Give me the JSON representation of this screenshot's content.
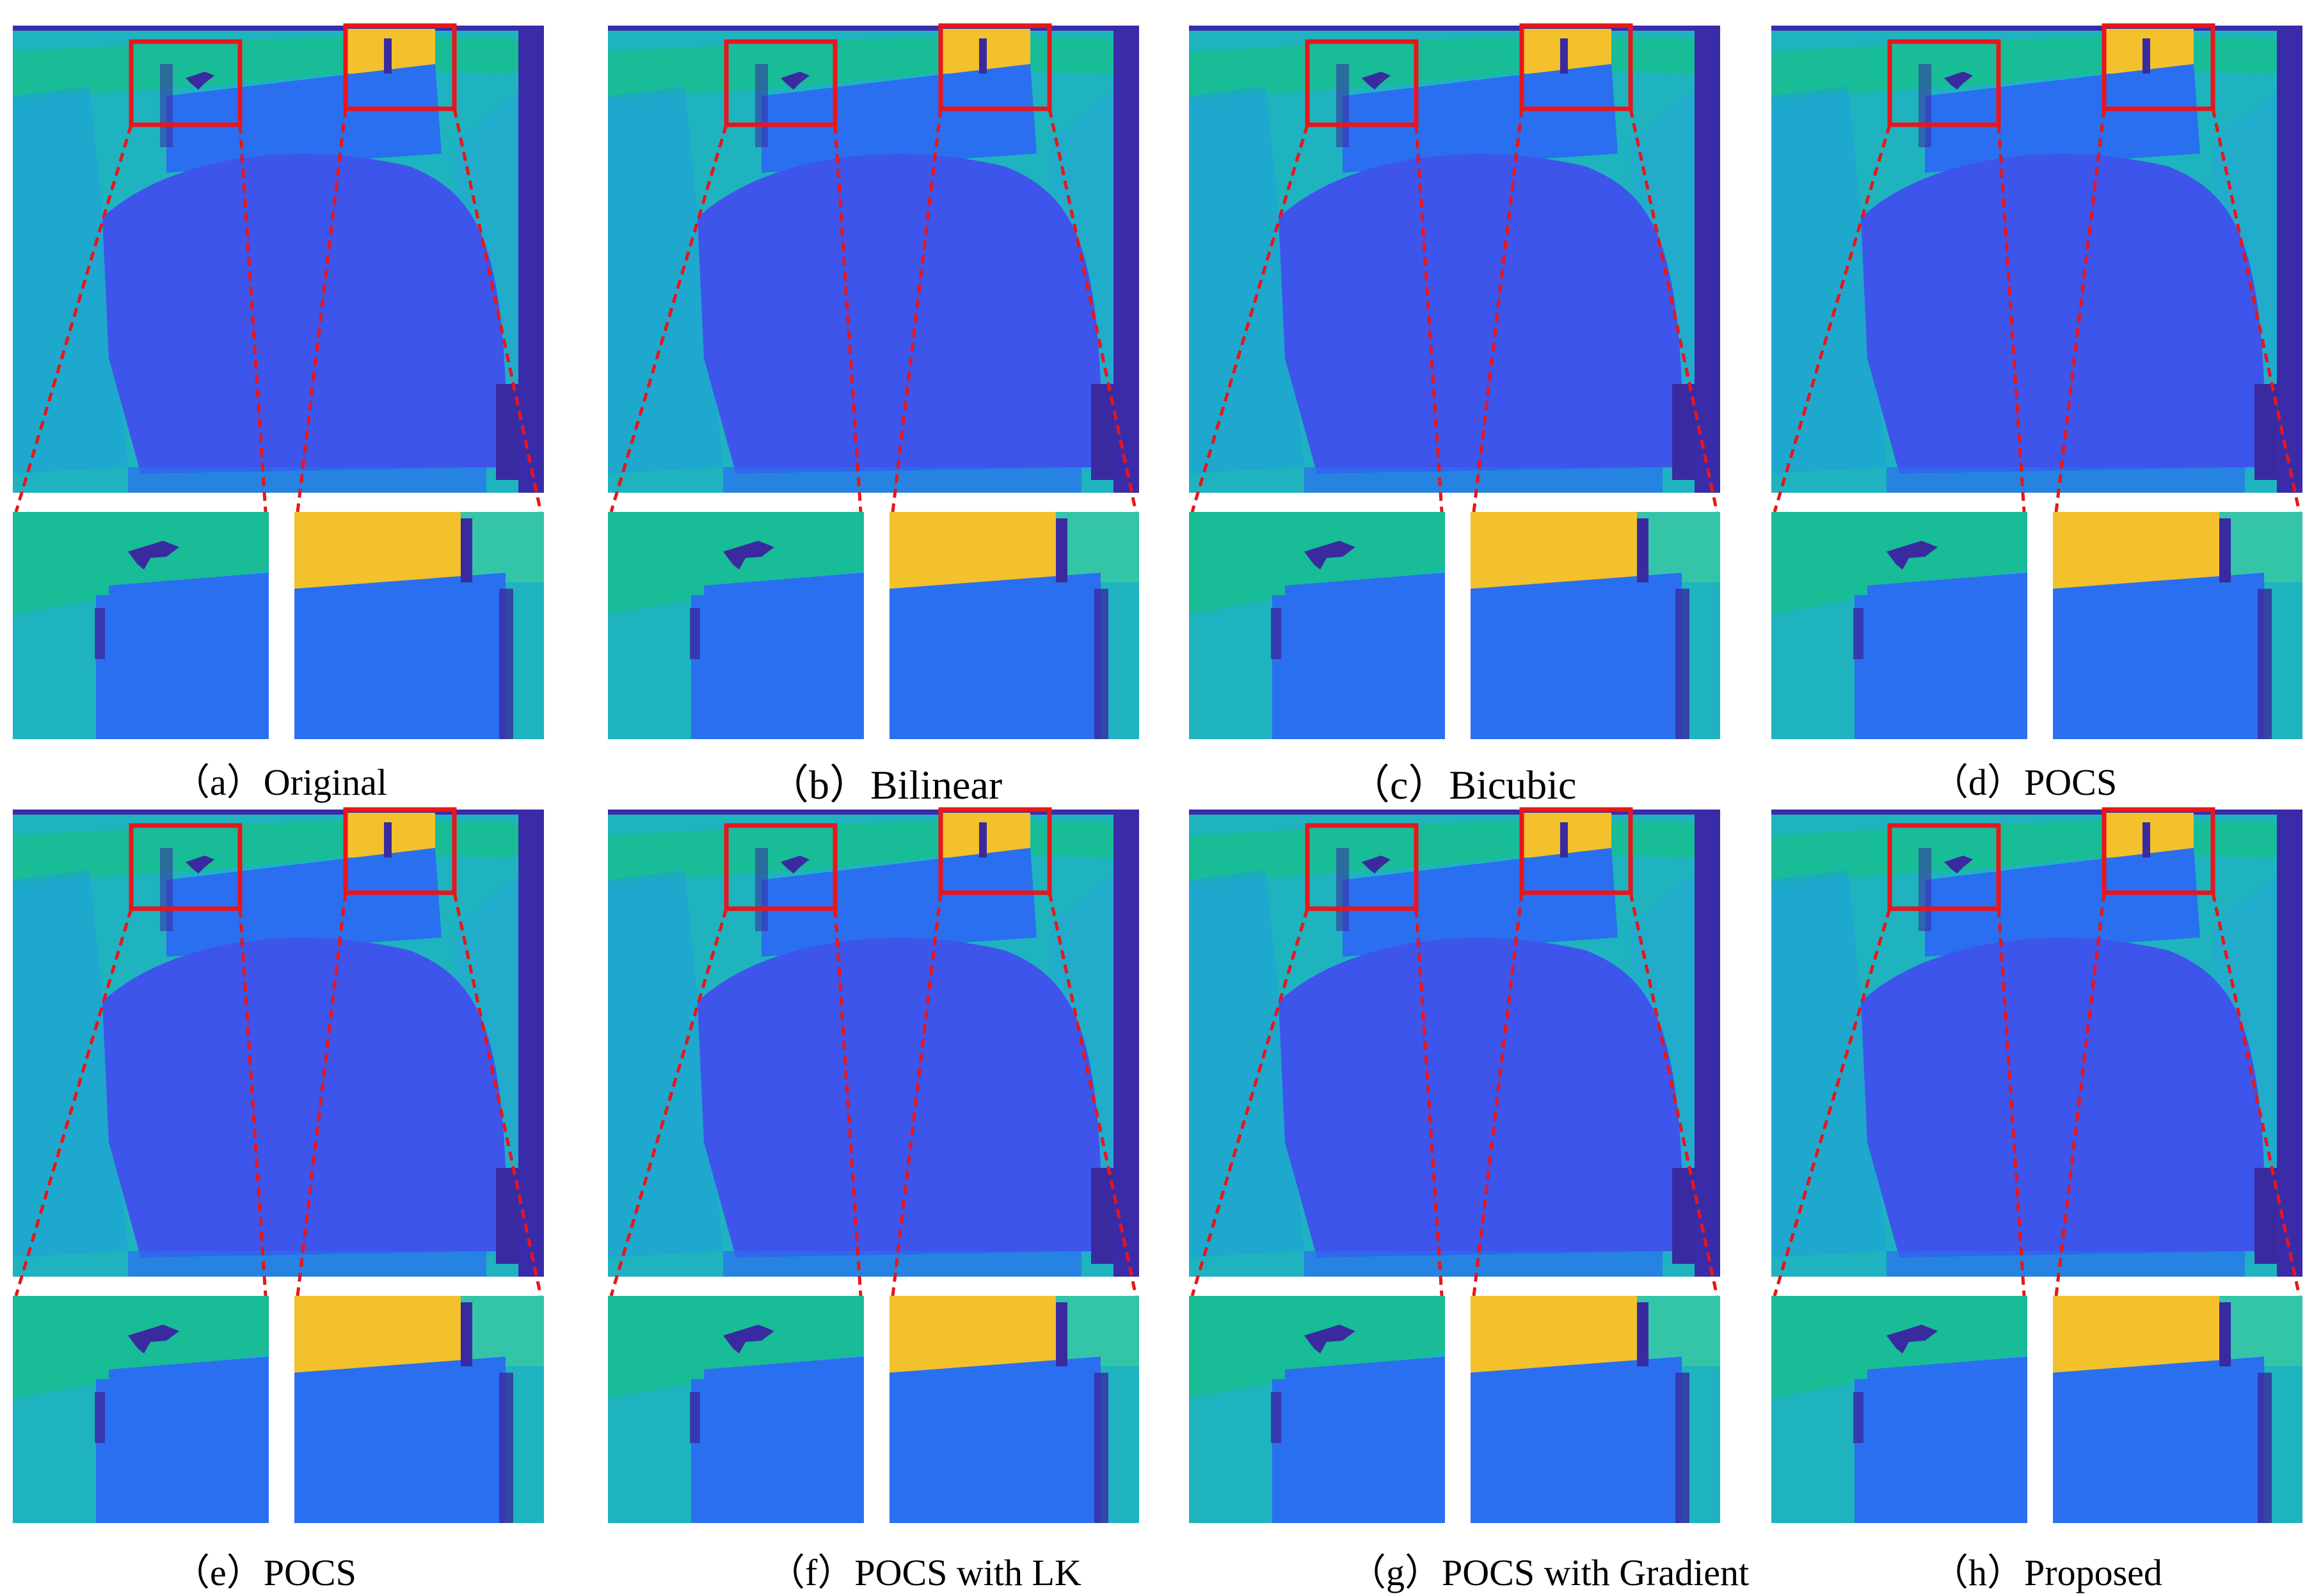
{
  "colors": {
    "frame": "#3a2ca8",
    "teal": "#1fb3bf",
    "green": "#17bf8a",
    "yellow": "#f2c12b",
    "blue_main": "#2a6ff0",
    "blue_body": "#3d55ea",
    "dark": "#3a2aa0",
    "roi_box": "#e8161b",
    "connector": "#e8161b"
  },
  "panels": [
    {
      "caption": "（a）Original"
    },
    {
      "caption": "（b）Bilinear"
    },
    {
      "caption": "（c）Bicubic"
    },
    {
      "caption": "（d）POCS"
    },
    {
      "caption": "（e）POCS"
    },
    {
      "caption": "（f）POCS with LK"
    },
    {
      "caption": "（g）POCS with Gradient"
    },
    {
      "caption": "（h）Proposed"
    }
  ]
}
